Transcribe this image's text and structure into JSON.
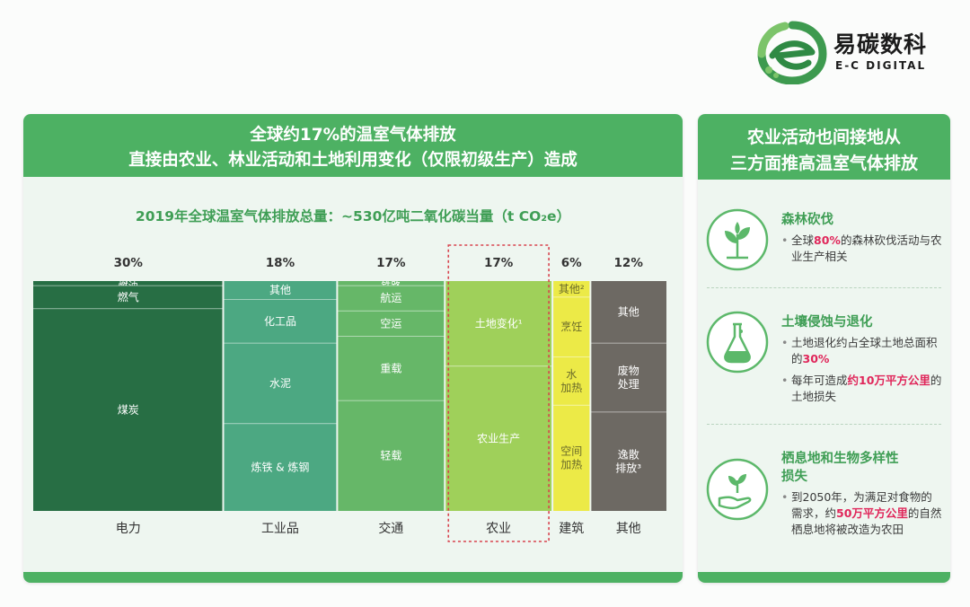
{
  "logo": {
    "name_cn": "易碳数科",
    "name_en": "E-C DIGITAL"
  },
  "left_panel": {
    "header_lines": [
      "全球约17%的温室气体排放",
      "直接由农业、林业活动和土地利用变化（仅限初级生产）造成"
    ],
    "subtitle": "2019年全球温室气体排放总量：~530亿吨二氧化碳当量（t CO₂e）"
  },
  "right_panel": {
    "header_lines": [
      "农业活动也间接地从",
      "三方面推高温室气体排放"
    ],
    "items": [
      {
        "title_lines": [
          "森林砍伐"
        ],
        "icon": "sprout-icon",
        "bullets": [
          [
            [
              "全球"
            ],
            [
              "80%",
              "hl"
            ],
            [
              "的森林砍伐"
            ],
            [
              "活动与农业生产相关"
            ]
          ]
        ]
      },
      {
        "title_lines": [
          "土壤侵蚀与退化"
        ],
        "icon": "flask-icon",
        "bullets": [
          [
            [
              "土地退化约占全球土地总面积的"
            ],
            [
              "30%",
              "hl"
            ]
          ],
          [
            [
              "每年可造成"
            ],
            [
              "约10万平方公里",
              "hl"
            ],
            [
              "的土地损失"
            ]
          ]
        ]
      },
      {
        "title_lines": [
          "栖息地和生物多样性",
          "损失"
        ],
        "icon": "hand-plant-icon",
        "bullets": [
          [
            [
              "到2050年，为满足对食物的需求，约"
            ],
            [
              "50万平方公里",
              "hl"
            ],
            [
              "的自然栖息地将被改造为农田"
            ]
          ]
        ]
      }
    ]
  },
  "chart_data": {
    "type": "bar",
    "variant": "stacked-100-marimekko",
    "title": "全球约17%的温室气体排放 直接由农业、林业活动和土地利用变化（仅限初级生产）造成",
    "subtitle": "2019年全球温室气体排放总量：~530亿吨二氧化碳当量（t CO₂e）",
    "highlight_category": "农业",
    "colors": {
      "电力": "#276e44",
      "工业品": "#4ca882",
      "交通": "#66b768",
      "农业": "#9fd05a",
      "建筑": "#ecea47",
      "其他": "#6d6963",
      "highlight_border": "#d8434e"
    },
    "categories": [
      {
        "name": "电力",
        "share_label": "30%",
        "share": 30,
        "segments": [
          {
            "label": "燃油",
            "value": 2
          },
          {
            "label": "燃气",
            "value": 10
          },
          {
            "label": "煤炭",
            "value": 88
          }
        ]
      },
      {
        "name": "工业品",
        "share_label": "18%",
        "share": 18,
        "segments": [
          {
            "label": "其他",
            "value": 8
          },
          {
            "label": "化工品",
            "value": 19
          },
          {
            "label": "水泥",
            "value": 35
          },
          {
            "label": "炼铁 & 炼钢",
            "value": 38
          }
        ]
      },
      {
        "name": "交通",
        "share_label": "17%",
        "share": 17,
        "segments": [
          {
            "label": "铁路",
            "value": 2
          },
          {
            "label": "航运",
            "value": 11
          },
          {
            "label": "空运",
            "value": 11
          },
          {
            "label": "重载",
            "value": 28
          },
          {
            "label": "轻载",
            "value": 48
          }
        ]
      },
      {
        "name": "农业",
        "share_label": "17%",
        "share": 17,
        "segments": [
          {
            "label": "土地变化¹",
            "value": 37
          },
          {
            "label": "农业生产",
            "value": 63
          }
        ]
      },
      {
        "name": "建筑",
        "share_label": "6%",
        "share": 6,
        "segments": [
          {
            "label": "其他²",
            "value": 7
          },
          {
            "label": "烹饪",
            "value": 26
          },
          {
            "label": "水\n加热",
            "value": 21
          },
          {
            "label": "空间\n加热",
            "value": 46
          }
        ]
      },
      {
        "name": "其他",
        "share_label": "12%",
        "share": 12,
        "segments": [
          {
            "label": "其他",
            "value": 27
          },
          {
            "label": "废物\n处理",
            "value": 30
          },
          {
            "label": "逸散\n排放³",
            "value": 43
          }
        ]
      }
    ]
  }
}
